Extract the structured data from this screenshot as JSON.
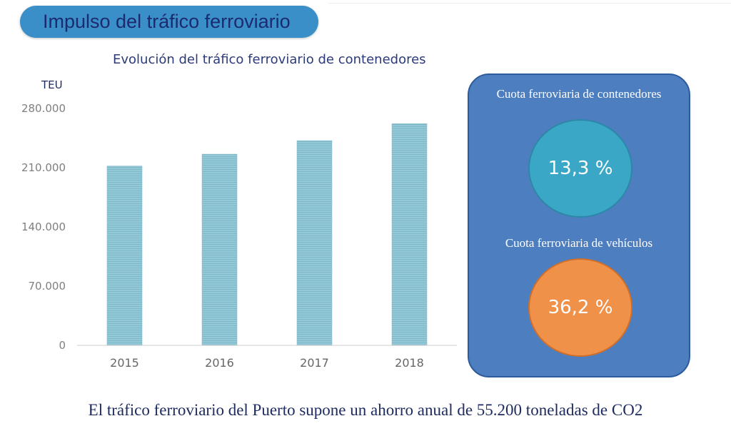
{
  "header": {
    "title": "Impulso del tráfico ferroviario"
  },
  "chart_data": {
    "type": "bar",
    "title": "Evolución del tráfico ferroviario de contenedores",
    "ylabel": "TEU",
    "xlabel": "",
    "categories": [
      "2015",
      "2016",
      "2017",
      "2018"
    ],
    "values": [
      212000,
      226000,
      242000,
      262000
    ],
    "ylim": [
      0,
      280000
    ],
    "yticks": [
      0,
      70000,
      140000,
      210000,
      280000
    ],
    "ytick_labels": [
      "0",
      "70.000",
      "140.000",
      "210.000",
      "280.000"
    ],
    "bar_color": "#8cc3d3",
    "grid": false,
    "legend": "none"
  },
  "side_panel": {
    "containers_label": "Cuota ferroviaria de contenedores",
    "containers_value": "13,3 %",
    "vehicles_label": "Cuota ferroviaria de vehículos",
    "vehicles_value": "36,2 %",
    "colors": {
      "panel": "#4d7ec0",
      "teal": "#3aa7c7",
      "orange": "#f0914a"
    }
  },
  "footer": {
    "text": "El tráfico ferroviario del Puerto supone un ahorro anual de 55.200 toneladas de CO2"
  }
}
